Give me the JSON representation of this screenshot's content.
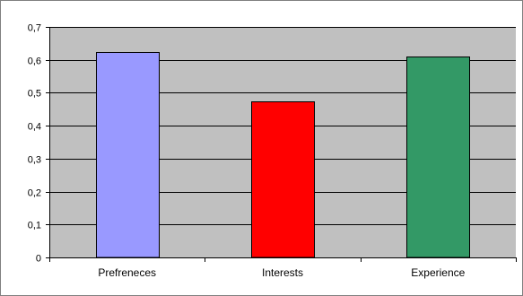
{
  "chart_data": {
    "type": "bar",
    "categories": [
      "Prefreneces",
      "Interests",
      "Experience"
    ],
    "values": [
      0.625,
      0.475,
      0.61
    ],
    "colors": [
      "#9999ff",
      "#ff0000",
      "#339966"
    ],
    "plot_background": "#c0c0c0",
    "ylim": [
      0,
      0.7
    ],
    "yticks": [
      0,
      0.1,
      0.2,
      0.3,
      0.4,
      0.5,
      0.6,
      0.7
    ],
    "ytick_labels": [
      "0",
      "0,1",
      "0,2",
      "0,3",
      "0,4",
      "0,5",
      "0,6",
      "0,7"
    ],
    "grid": true,
    "legend": "none"
  }
}
